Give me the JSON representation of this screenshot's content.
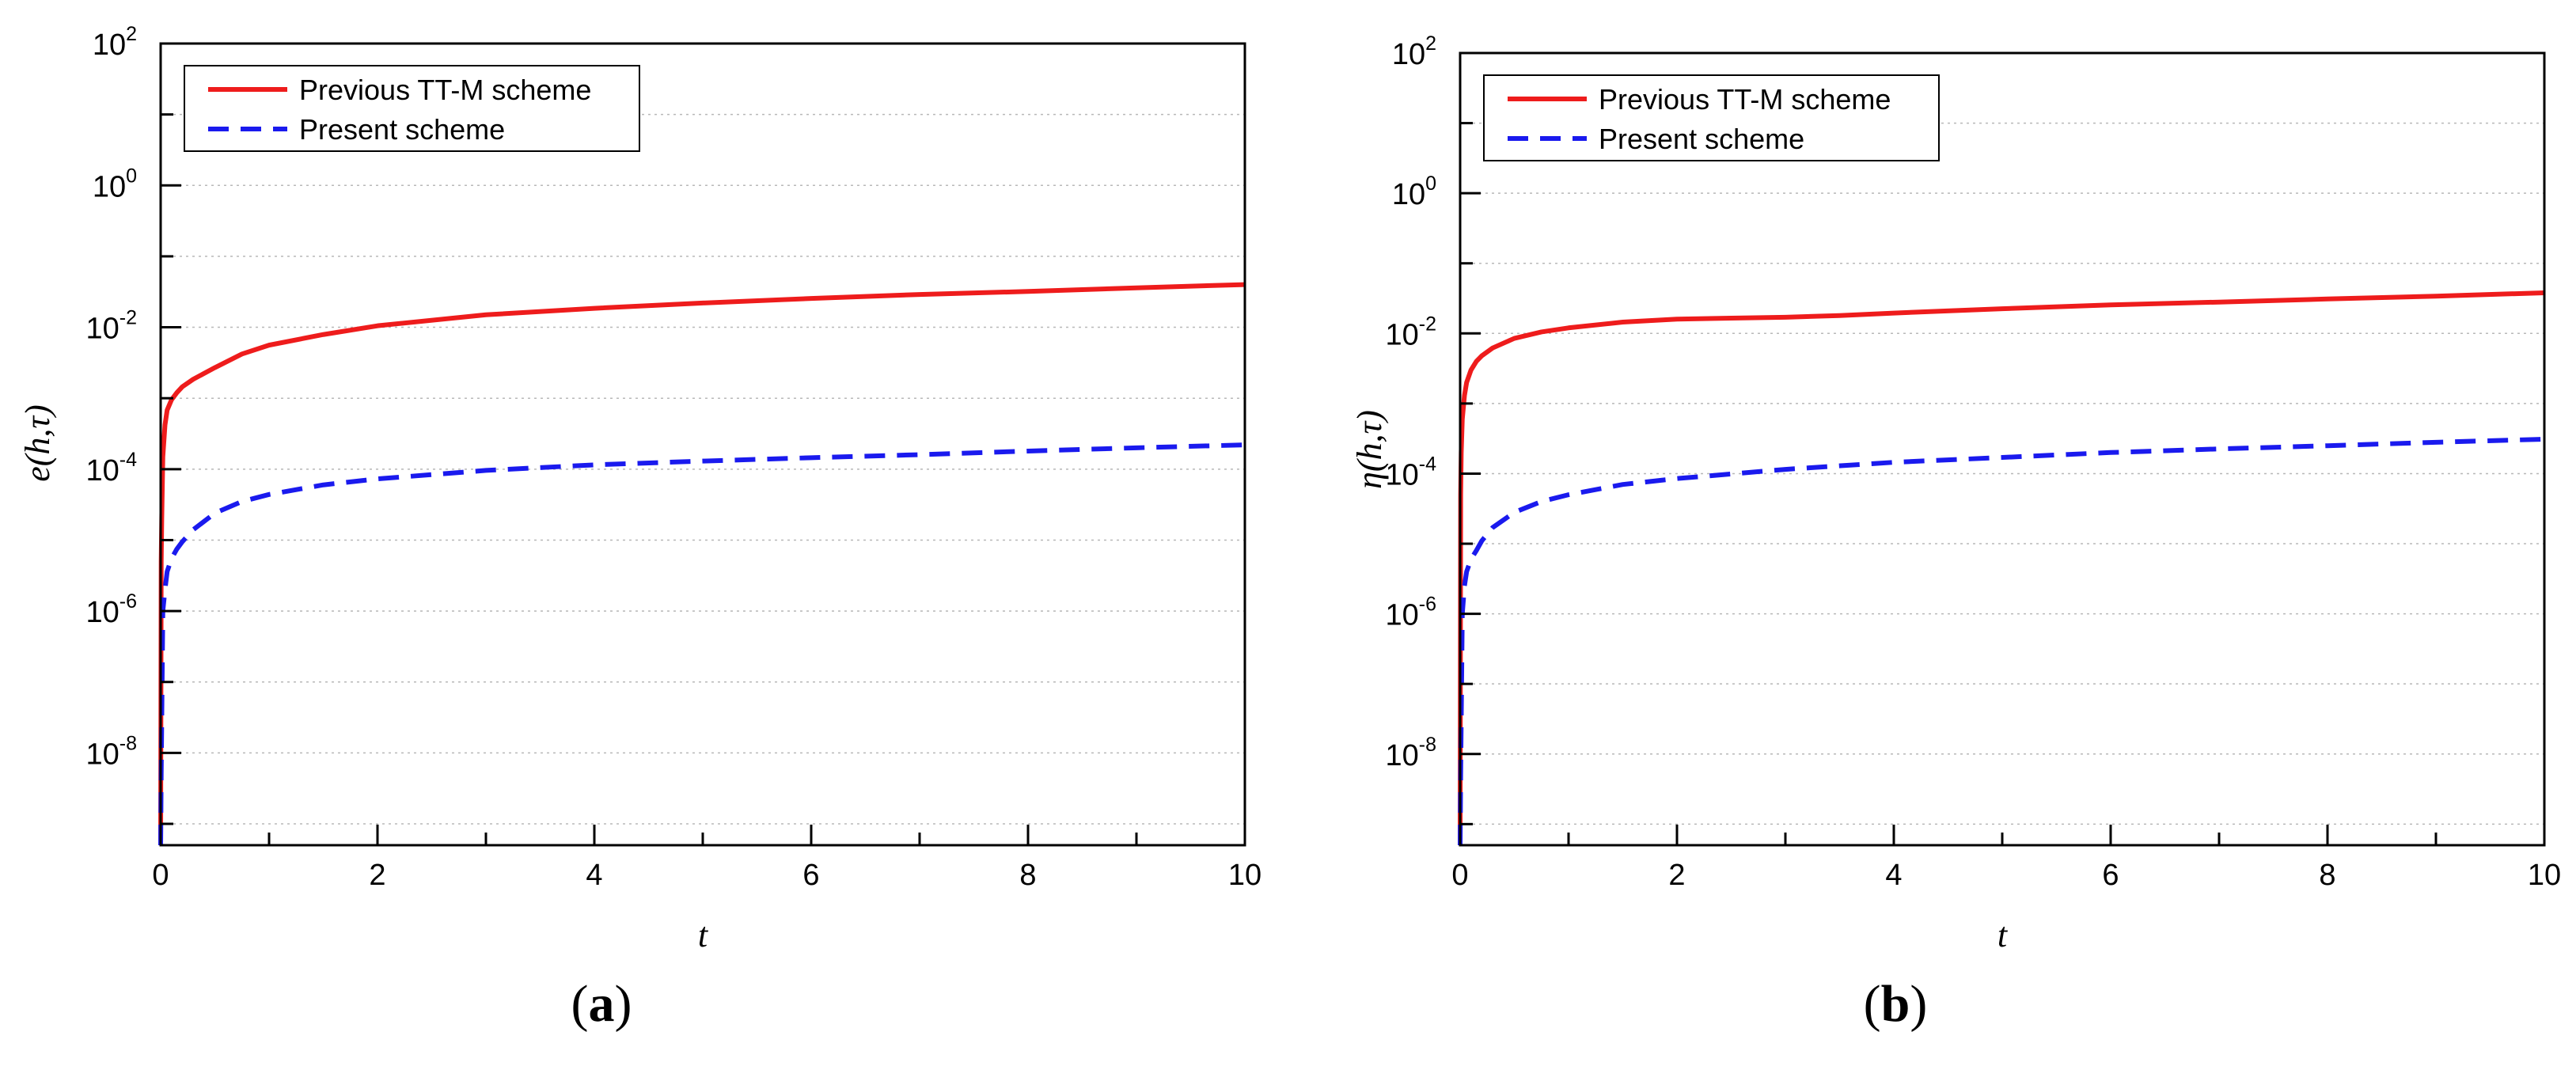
{
  "chart_data": [
    {
      "type": "line",
      "panel_label": "a",
      "xlabel": "t",
      "ylabel": "e(h,τ)",
      "yscale": "log",
      "xlim": [
        0,
        10
      ],
      "ylim": [
        5e-10,
        100.0
      ],
      "x_ticks": [
        "0",
        "2",
        "4",
        "6",
        "8",
        "10"
      ],
      "y_ticks": [
        {
          "base": "10",
          "exp": "2"
        },
        {
          "base": "10",
          "exp": "0"
        },
        {
          "base": "10",
          "exp": "-2"
        },
        {
          "base": "10",
          "exp": "-4"
        },
        {
          "base": "10",
          "exp": "-6"
        },
        {
          "base": "10",
          "exp": "-8"
        }
      ],
      "grid": true,
      "legend_position": "top-left",
      "series": [
        {
          "name": "Previous TT-M scheme",
          "color": "#ee1c1c",
          "style": "solid",
          "x": [
            0,
            0.005,
            0.01,
            0.02,
            0.04,
            0.06,
            0.1,
            0.15,
            0.2,
            0.3,
            0.5,
            0.75,
            1.0,
            1.5,
            2.0,
            3.0,
            4.0,
            5.0,
            6.0,
            7.0,
            8.0,
            9.0,
            10.0
          ],
          "y": [
            5e-10,
            5e-06,
            2e-05,
            0.00015,
            0.00042,
            0.00068,
            0.00095,
            0.0012,
            0.00145,
            0.00185,
            0.0027,
            0.0042,
            0.0056,
            0.0079,
            0.0105,
            0.015,
            0.0185,
            0.022,
            0.0255,
            0.029,
            0.032,
            0.036,
            0.04
          ]
        },
        {
          "name": "Present scheme",
          "color": "#1a1aee",
          "style": "dashed",
          "x": [
            0,
            0.005,
            0.02,
            0.04,
            0.06,
            0.1,
            0.15,
            0.2,
            0.3,
            0.5,
            0.75,
            1.0,
            1.5,
            2.0,
            3.0,
            4.0,
            5.0,
            6.0,
            7.0,
            8.0,
            9.0,
            10.0
          ],
          "y": [
            5e-10,
            5e-09,
            1e-06,
            2e-06,
            3.6e-06,
            5.5e-06,
            7.5e-06,
            9.5e-06,
            1.4e-05,
            2.4e-05,
            3.5e-05,
            4.4e-05,
            6e-05,
            7.3e-05,
            9.6e-05,
            0.000115,
            0.00013,
            0.000145,
            0.00016,
            0.00018,
            0.0002,
            0.00022
          ]
        }
      ]
    },
    {
      "type": "line",
      "panel_label": "b",
      "xlabel": "t",
      "ylabel": "η(h,τ)",
      "yscale": "log",
      "xlim": [
        0,
        10
      ],
      "ylim": [
        5e-10,
        100.0
      ],
      "x_ticks": [
        "0",
        "2",
        "4",
        "6",
        "8",
        "10"
      ],
      "y_ticks": [
        {
          "base": "10",
          "exp": "2"
        },
        {
          "base": "10",
          "exp": "0"
        },
        {
          "base": "10",
          "exp": "-2"
        },
        {
          "base": "10",
          "exp": "-4"
        },
        {
          "base": "10",
          "exp": "-6"
        },
        {
          "base": "10",
          "exp": "-8"
        }
      ],
      "grid": true,
      "legend_position": "top-left",
      "series": [
        {
          "name": "Previous TT-M scheme",
          "color": "#ee1c1c",
          "style": "solid",
          "x": [
            0,
            0.005,
            0.01,
            0.02,
            0.04,
            0.06,
            0.1,
            0.15,
            0.2,
            0.3,
            0.5,
            0.75,
            1.0,
            1.5,
            2.0,
            2.5,
            3.0,
            3.5,
            4.0,
            5.0,
            6.0,
            7.0,
            8.0,
            9.0,
            10.0
          ],
          "y": [
            5e-10,
            5e-05,
            0.0002,
            0.0006,
            0.0013,
            0.002,
            0.003,
            0.004,
            0.0048,
            0.0062,
            0.0085,
            0.0105,
            0.012,
            0.0145,
            0.016,
            0.0165,
            0.017,
            0.018,
            0.0195,
            0.0225,
            0.0255,
            0.028,
            0.031,
            0.034,
            0.038
          ]
        },
        {
          "name": "Present scheme",
          "color": "#1a1aee",
          "style": "dashed",
          "x": [
            0,
            0.005,
            0.02,
            0.04,
            0.06,
            0.1,
            0.15,
            0.2,
            0.3,
            0.5,
            0.75,
            1.0,
            1.5,
            2.0,
            3.0,
            4.0,
            5.0,
            6.0,
            7.0,
            8.0,
            9.0,
            10.0
          ],
          "y": [
            5e-10,
            5e-09,
            1e-06,
            2.5e-06,
            4e-06,
            6e-06,
            8e-06,
            1.1e-05,
            1.7e-05,
            2.8e-05,
            4e-05,
            5e-05,
            7e-05,
            8.5e-05,
            0.000115,
            0.000145,
            0.00017,
            0.0002,
            0.000225,
            0.00025,
            0.00028,
            0.00031
          ]
        }
      ]
    }
  ]
}
